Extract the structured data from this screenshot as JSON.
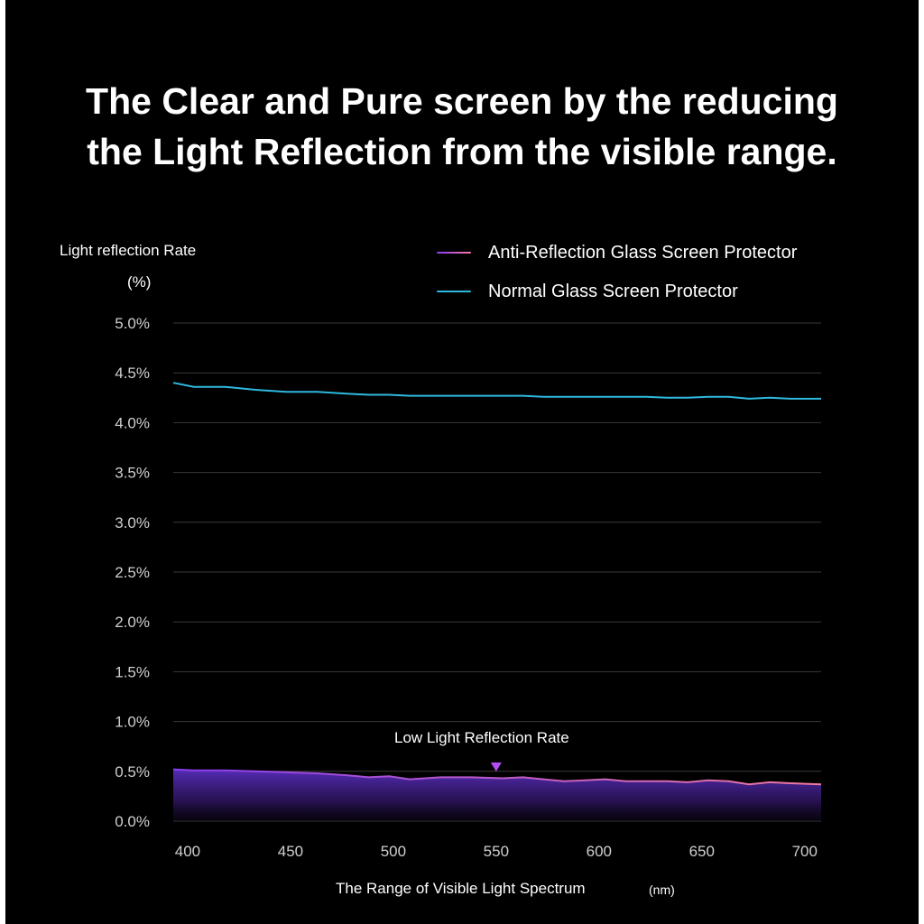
{
  "title_lines": [
    "The Clear and Pure screen by the reducing",
    "the Light Reflection from the visible range."
  ],
  "chart_data": {
    "type": "line",
    "ylabel": "Light reflection Rate",
    "yunit": "(%)",
    "xlabel": "The Range of Visible Light Spectrum",
    "xunit": "(nm)",
    "xlim": [
      393,
      708
    ],
    "ylim": [
      0,
      5
    ],
    "grid": true,
    "legend": "top-right",
    "x_ticks": [
      400,
      450,
      500,
      550,
      600,
      650,
      700
    ],
    "x_tick_labels": [
      "400",
      "450",
      "500",
      "550",
      "600",
      "650",
      "700"
    ],
    "y_ticks": [
      0,
      0.5,
      1,
      1.5,
      2,
      2.5,
      3,
      3.5,
      4,
      4.5,
      5
    ],
    "y_tick_labels": [
      "0.0%",
      "0.5%",
      "1.0%",
      "1.5%",
      "2.0%",
      "2.5%",
      "3.0%",
      "3.5%",
      "4.0%",
      "4.5%",
      "5.0%"
    ],
    "x": [
      393,
      403,
      418,
      433,
      448,
      463,
      478,
      488,
      498,
      508,
      523,
      538,
      553,
      563,
      573,
      583,
      593,
      603,
      613,
      623,
      633,
      643,
      653,
      663,
      673,
      683,
      693,
      708
    ],
    "series": [
      {
        "name": "Anti-Reflection Glass Screen Protector",
        "color_start": "#8a3cf0",
        "color_end": "#f07aa0",
        "fill": true,
        "values": [
          0.52,
          0.51,
          0.51,
          0.5,
          0.49,
          0.48,
          0.46,
          0.44,
          0.45,
          0.42,
          0.44,
          0.44,
          0.43,
          0.44,
          0.42,
          0.4,
          0.41,
          0.42,
          0.4,
          0.4,
          0.4,
          0.39,
          0.41,
          0.4,
          0.37,
          0.39,
          0.38,
          0.37
        ]
      },
      {
        "name": "Normal Glass Screen Protector",
        "color": "#2fb8de",
        "fill": false,
        "values": [
          4.4,
          4.36,
          4.36,
          4.33,
          4.31,
          4.31,
          4.29,
          4.28,
          4.28,
          4.27,
          4.27,
          4.27,
          4.27,
          4.27,
          4.26,
          4.26,
          4.26,
          4.26,
          4.26,
          4.26,
          4.25,
          4.25,
          4.26,
          4.26,
          4.24,
          4.25,
          4.24,
          4.24
        ]
      }
    ],
    "annotation": {
      "text": "Low Light Reflection Rate",
      "x": 550,
      "marker_color": "#b24df5"
    },
    "colors": {
      "background": "#000000",
      "grid": "#3a3a3a",
      "tick_text": "#cfcfcf",
      "text": "#ffffff"
    }
  }
}
